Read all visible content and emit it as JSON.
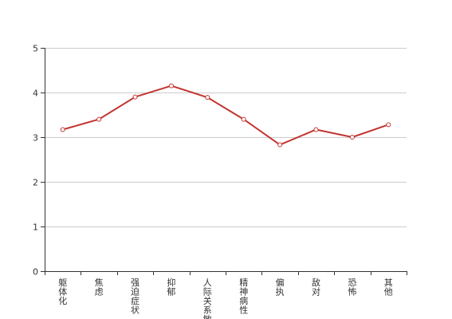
{
  "chart_data": {
    "type": "line",
    "title": "",
    "xlabel": "",
    "ylabel": "",
    "categories": [
      "躯体化",
      "焦虑",
      "强迫症状",
      "抑郁",
      "人际关系敏感",
      "精神病性",
      "偏执",
      "敌对",
      "恐怖",
      "其他"
    ],
    "series": [
      {
        "values": [
          3.17,
          3.4,
          3.9,
          4.15,
          3.89,
          3.4,
          2.83,
          3.17,
          3.0,
          3.28
        ],
        "color": "#c23531"
      }
    ],
    "ylim": [
      0,
      5
    ],
    "yticks": [
      0,
      1,
      2,
      3,
      4,
      5
    ],
    "grid": true,
    "legend": "none"
  }
}
